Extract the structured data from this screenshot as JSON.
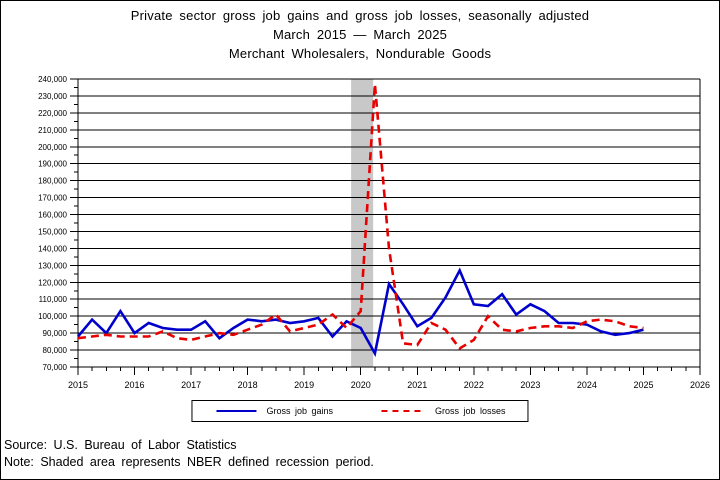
{
  "title": {
    "line1": "Private sector gross job gains and gross job losses, seasonally adjusted",
    "line2": "March 2015 — March 2025",
    "line3": "Merchant Wholesalers, Nondurable Goods"
  },
  "legend": {
    "gains_label": "Gross job gains",
    "losses_label": "Gross job losses"
  },
  "footer": {
    "source": "Source: U.S. Bureau of Labor Statistics",
    "note": "Note: Shaded area represents NBER defined recession period."
  },
  "chart_data": {
    "type": "line",
    "title": "Private sector gross job gains and gross job losses, seasonally adjusted, March 2015 — March 2025, Merchant Wholesalers, Nondurable Goods",
    "xlabel": "",
    "ylabel": "",
    "ylim": [
      70000,
      240000
    ],
    "ytick_step": 10000,
    "ytick_minor_step": 5000,
    "x_range_years": [
      2015,
      2026
    ],
    "x_tick_labels": [
      "2015",
      "2016",
      "2017",
      "2018",
      "2019",
      "2020",
      "2021",
      "2022",
      "2023",
      "2024",
      "2025",
      "2026"
    ],
    "grid": "horizontal",
    "legend_position": "bottom-center",
    "recession_band": {
      "start_year": 2019.83,
      "end_year": 2020.22,
      "color": "#c8c8c8",
      "note": "NBER defined recession period"
    },
    "categories": [
      "Mar 2015",
      "Jun 2015",
      "Sep 2015",
      "Dec 2015",
      "Mar 2016",
      "Jun 2016",
      "Sep 2016",
      "Dec 2016",
      "Mar 2017",
      "Jun 2017",
      "Sep 2017",
      "Dec 2017",
      "Mar 2018",
      "Jun 2018",
      "Sep 2018",
      "Dec 2018",
      "Mar 2019",
      "Jun 2019",
      "Sep 2019",
      "Dec 2019",
      "Mar 2020",
      "Jun 2020",
      "Sep 2020",
      "Dec 2020",
      "Mar 2021",
      "Jun 2021",
      "Sep 2021",
      "Dec 2021",
      "Mar 2022",
      "Jun 2022",
      "Sep 2022",
      "Dec 2022",
      "Mar 2023",
      "Jun 2023",
      "Sep 2023",
      "Dec 2023",
      "Mar 2024",
      "Jun 2024",
      "Sep 2024",
      "Dec 2024",
      "Mar 2025"
    ],
    "series": [
      {
        "name": "Gross job gains",
        "color": "#0000cc",
        "style": "solid",
        "values": [
          88000,
          98000,
          90000,
          103000,
          90000,
          96000,
          93000,
          92000,
          92000,
          97000,
          87000,
          93000,
          98000,
          97000,
          98000,
          96000,
          97000,
          99000,
          88000,
          97000,
          93000,
          78000,
          119000,
          107000,
          94000,
          99000,
          111000,
          127000,
          107000,
          106000,
          113000,
          101000,
          107000,
          103000,
          96000,
          96000,
          95000,
          91000,
          89000,
          90000,
          92000
        ]
      },
      {
        "name": "Gross job losses",
        "color": "#e80000",
        "style": "dashed",
        "values": [
          87000,
          88000,
          89000,
          88000,
          88000,
          88000,
          91000,
          87000,
          86000,
          88000,
          90000,
          89000,
          92000,
          95000,
          101000,
          91000,
          93000,
          95000,
          101000,
          93000,
          103000,
          237000,
          140000,
          84000,
          83000,
          96000,
          92000,
          81000,
          86000,
          100000,
          92000,
          91000,
          93000,
          94000,
          94000,
          93000,
          97000,
          98000,
          97000,
          94000,
          93000
        ]
      }
    ]
  }
}
